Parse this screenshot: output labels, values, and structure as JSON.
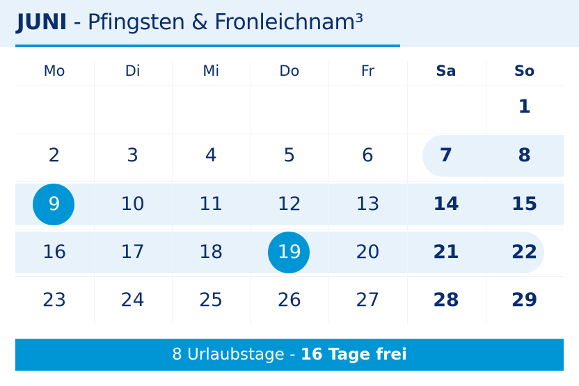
{
  "header": {
    "month": "JUNI",
    "separator": " - ",
    "subtitle": "Pfingsten & Fronleichnam³"
  },
  "weekdays": [
    "Mo",
    "Di",
    "Mi",
    "Do",
    "Fr",
    "Sa",
    "So"
  ],
  "weeks": [
    [
      null,
      null,
      null,
      null,
      null,
      null,
      1
    ],
    [
      2,
      3,
      4,
      5,
      6,
      7,
      8
    ],
    [
      9,
      10,
      11,
      12,
      13,
      14,
      15
    ],
    [
      16,
      17,
      18,
      19,
      20,
      21,
      22
    ],
    [
      23,
      24,
      25,
      26,
      27,
      28,
      29
    ]
  ],
  "holidays": [
    9,
    19
  ],
  "vacation_range": {
    "from": 7,
    "to": 22
  },
  "colors": {
    "accent": "#0096d6",
    "text": "#0a2d6e",
    "highlight": "#e8f2fa"
  },
  "footer": {
    "vacation_days": "8 Urlaubstage - ",
    "free_days": "16 Tage frei"
  }
}
